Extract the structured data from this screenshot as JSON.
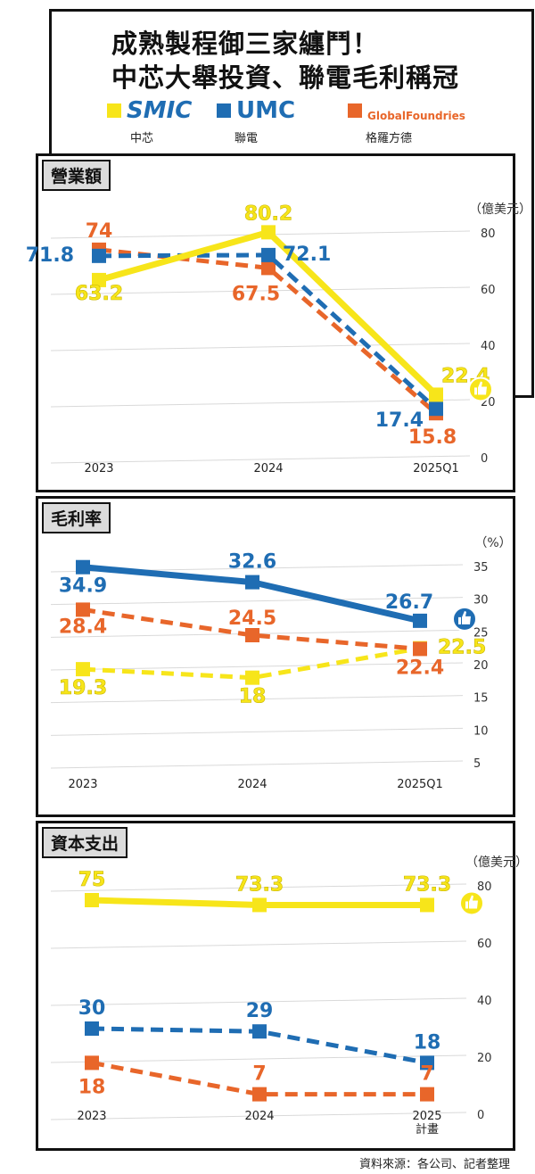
{
  "title": {
    "line1": "成熟製程御三家纏鬥！",
    "line2": "中芯大舉投資、聯電毛利稱冠"
  },
  "legend": [
    {
      "logo": "SMIC",
      "sub": "中芯",
      "color": "#f7e51a"
    },
    {
      "logo": "UMC",
      "sub": "聯電",
      "color": "#1f6db3"
    },
    {
      "logo": "GlobalFoundries",
      "sub": "格羅方德",
      "color": "#e8662a"
    }
  ],
  "colors": {
    "smic": "#f7e51a",
    "umc": "#1f6db3",
    "gf": "#e8662a"
  },
  "icons": [
    "thumbs-up-icon"
  ],
  "source": "資料來源：各公司、記者整理",
  "chart_data": [
    {
      "tag": "營業額",
      "type": "line",
      "categories": [
        "2023",
        "2024",
        "2025Q1"
      ],
      "unit": "（億美元）",
      "ylim": [
        0,
        80
      ],
      "yticks": [
        0,
        20,
        40,
        60,
        80
      ],
      "series": [
        {
          "name": "中芯",
          "key": "smic",
          "values": [
            63.2,
            80.2,
            22.4
          ],
          "labels": [
            "63.2",
            "80.2",
            "22.4"
          ],
          "dashed": false,
          "thumb": true
        },
        {
          "name": "聯電",
          "key": "umc",
          "values": [
            71.8,
            72.1,
            17.4
          ],
          "labels": [
            "71.8",
            "72.1",
            "17.4"
          ],
          "dashed": true,
          "thumb": false
        },
        {
          "name": "格羅方德",
          "key": "gf",
          "values": [
            74,
            67.5,
            15.8
          ],
          "labels": [
            "74",
            "67.5",
            "15.8"
          ],
          "dashed": true,
          "thumb": false
        }
      ]
    },
    {
      "tag": "毛利率",
      "type": "line",
      "categories": [
        "2023",
        "2024",
        "2025Q1"
      ],
      "unit": "（%）",
      "ylim": [
        5,
        35
      ],
      "yticks": [
        5,
        10,
        15,
        20,
        25,
        30,
        35
      ],
      "series": [
        {
          "name": "聯電",
          "key": "umc",
          "values": [
            34.9,
            32.6,
            26.7
          ],
          "labels": [
            "34.9",
            "32.6",
            "26.7"
          ],
          "dashed": false,
          "thumb": true
        },
        {
          "name": "格羅方德",
          "key": "gf",
          "values": [
            28.4,
            24.5,
            22.4
          ],
          "labels": [
            "28.4",
            "24.5",
            "22.4"
          ],
          "dashed": true,
          "thumb": false
        },
        {
          "name": "中芯",
          "key": "smic",
          "values": [
            19.3,
            18,
            22.5
          ],
          "labels": [
            "19.3",
            "18",
            "22.5"
          ],
          "dashed": true,
          "thumb": false
        }
      ]
    },
    {
      "tag": "資本支出",
      "type": "line",
      "categories": [
        "2023",
        "2024",
        "2025\n計畫"
      ],
      "unit": "（億美元）",
      "ylim": [
        0,
        80
      ],
      "yticks": [
        0,
        20,
        40,
        60,
        80
      ],
      "series": [
        {
          "name": "中芯",
          "key": "smic",
          "values": [
            75,
            73.3,
            73.3
          ],
          "labels": [
            "75",
            "73.3",
            "73.3"
          ],
          "dashed": false,
          "thumb": true
        },
        {
          "name": "聯電",
          "key": "umc",
          "values": [
            30,
            29,
            18
          ],
          "labels": [
            "30",
            "29",
            "18"
          ],
          "dashed": true,
          "thumb": false
        },
        {
          "name": "格羅方德",
          "key": "gf",
          "values": [
            18,
            7,
            7
          ],
          "labels": [
            "18",
            "7",
            "7"
          ],
          "dashed": true,
          "thumb": false
        }
      ]
    }
  ]
}
